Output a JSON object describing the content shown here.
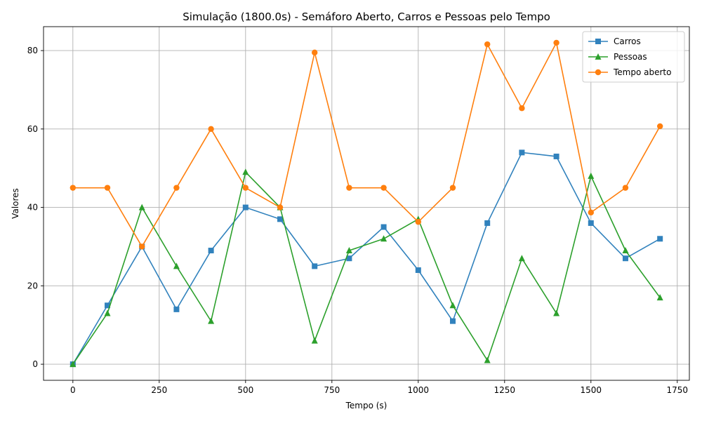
{
  "chart_data": {
    "type": "line",
    "title": "Simulação (1800.0s) - Semáforo Aberto, Carros e Pessoas pelo Tempo",
    "xlabel": "Tempo (s)",
    "ylabel": "Valores",
    "xlim": [
      -85,
      1785
    ],
    "ylim": [
      -4.1,
      86.1
    ],
    "xticks": [
      0,
      250,
      500,
      750,
      1000,
      1250,
      1500,
      1750
    ],
    "xtick_labels": [
      "0",
      "250",
      "500",
      "750",
      "1000",
      "1250",
      "1500",
      "1750"
    ],
    "yticks": [
      0,
      20,
      40,
      60,
      80
    ],
    "ytick_labels": [
      "0",
      "20",
      "40",
      "60",
      "80"
    ],
    "grid": true,
    "legend_position": "top-right",
    "x": [
      0,
      100,
      200,
      300,
      400,
      500,
      600,
      700,
      800,
      900,
      1000,
      1100,
      1200,
      1300,
      1400,
      1500,
      1600,
      1700
    ],
    "series": [
      {
        "name": "Carros",
        "color": "#3182bd",
        "marker": "square",
        "values": [
          0,
          15,
          30,
          14,
          29,
          40,
          37,
          25,
          27,
          35,
          24,
          11,
          36,
          54,
          53,
          36,
          27,
          32
        ]
      },
      {
        "name": "Pessoas",
        "color": "#2ca02c",
        "marker": "triangle",
        "values": [
          0,
          13,
          40,
          25,
          11,
          49,
          40,
          6,
          29,
          32,
          37,
          15,
          1,
          27,
          13,
          48,
          29,
          17
        ]
      },
      {
        "name": "Tempo aberto",
        "color": "#ff7f0e",
        "marker": "circle",
        "values": [
          45,
          45,
          30,
          45,
          60,
          45,
          40,
          79.5,
          45,
          45,
          36.3,
          45,
          81.6,
          65.3,
          82,
          38.7,
          45,
          60.7
        ]
      }
    ]
  }
}
